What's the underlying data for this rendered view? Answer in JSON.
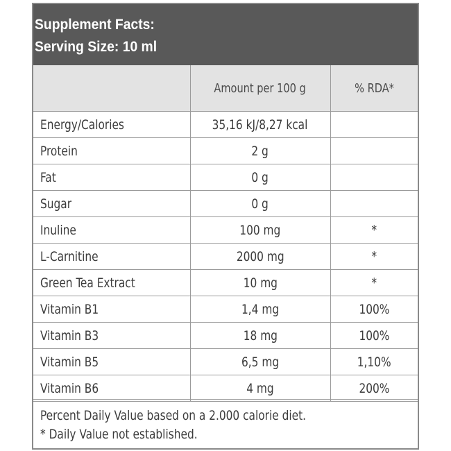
{
  "header": {
    "title": "Supplement Facts:",
    "serving": "Serving Size: 10 ml"
  },
  "table": {
    "columns": [
      "",
      "Amount per 100 g",
      "% RDA*"
    ],
    "rows": [
      {
        "name": "Energy/Calories",
        "amount": "35,16 kJ/8,27 kcal",
        "rda": ""
      },
      {
        "name": "Protein",
        "amount": "2 g",
        "rda": ""
      },
      {
        "name": "Fat",
        "amount": "0 g",
        "rda": ""
      },
      {
        "name": "Sugar",
        "amount": "0 g",
        "rda": ""
      },
      {
        "name": "Inuline",
        "amount": "100 mg",
        "rda": "*"
      },
      {
        "name": "L-Carnitine",
        "amount": "2000 mg",
        "rda": "*"
      },
      {
        "name": "Green Tea Extract",
        "amount": "10 mg",
        "rda": "*"
      },
      {
        "name": "Vitamin B1",
        "amount": "1,4 mg",
        "rda": "100%"
      },
      {
        "name": "Vitamin B3",
        "amount": "18 mg",
        "rda": "100%"
      },
      {
        "name": "Vitamin B5",
        "amount": "6,5 mg",
        "rda": "1,10%"
      },
      {
        "name": "Vitamin B6",
        "amount": "4 mg",
        "rda": "200%"
      }
    ]
  },
  "footer": {
    "line1": "Percent Daily Value based on a 2.000 calorie diet.",
    "line2": "* Daily Value not established."
  },
  "colors": {
    "header_bg": "#595959",
    "column_header_bg": "#e3e3e3",
    "border": "#9a9a9a"
  }
}
